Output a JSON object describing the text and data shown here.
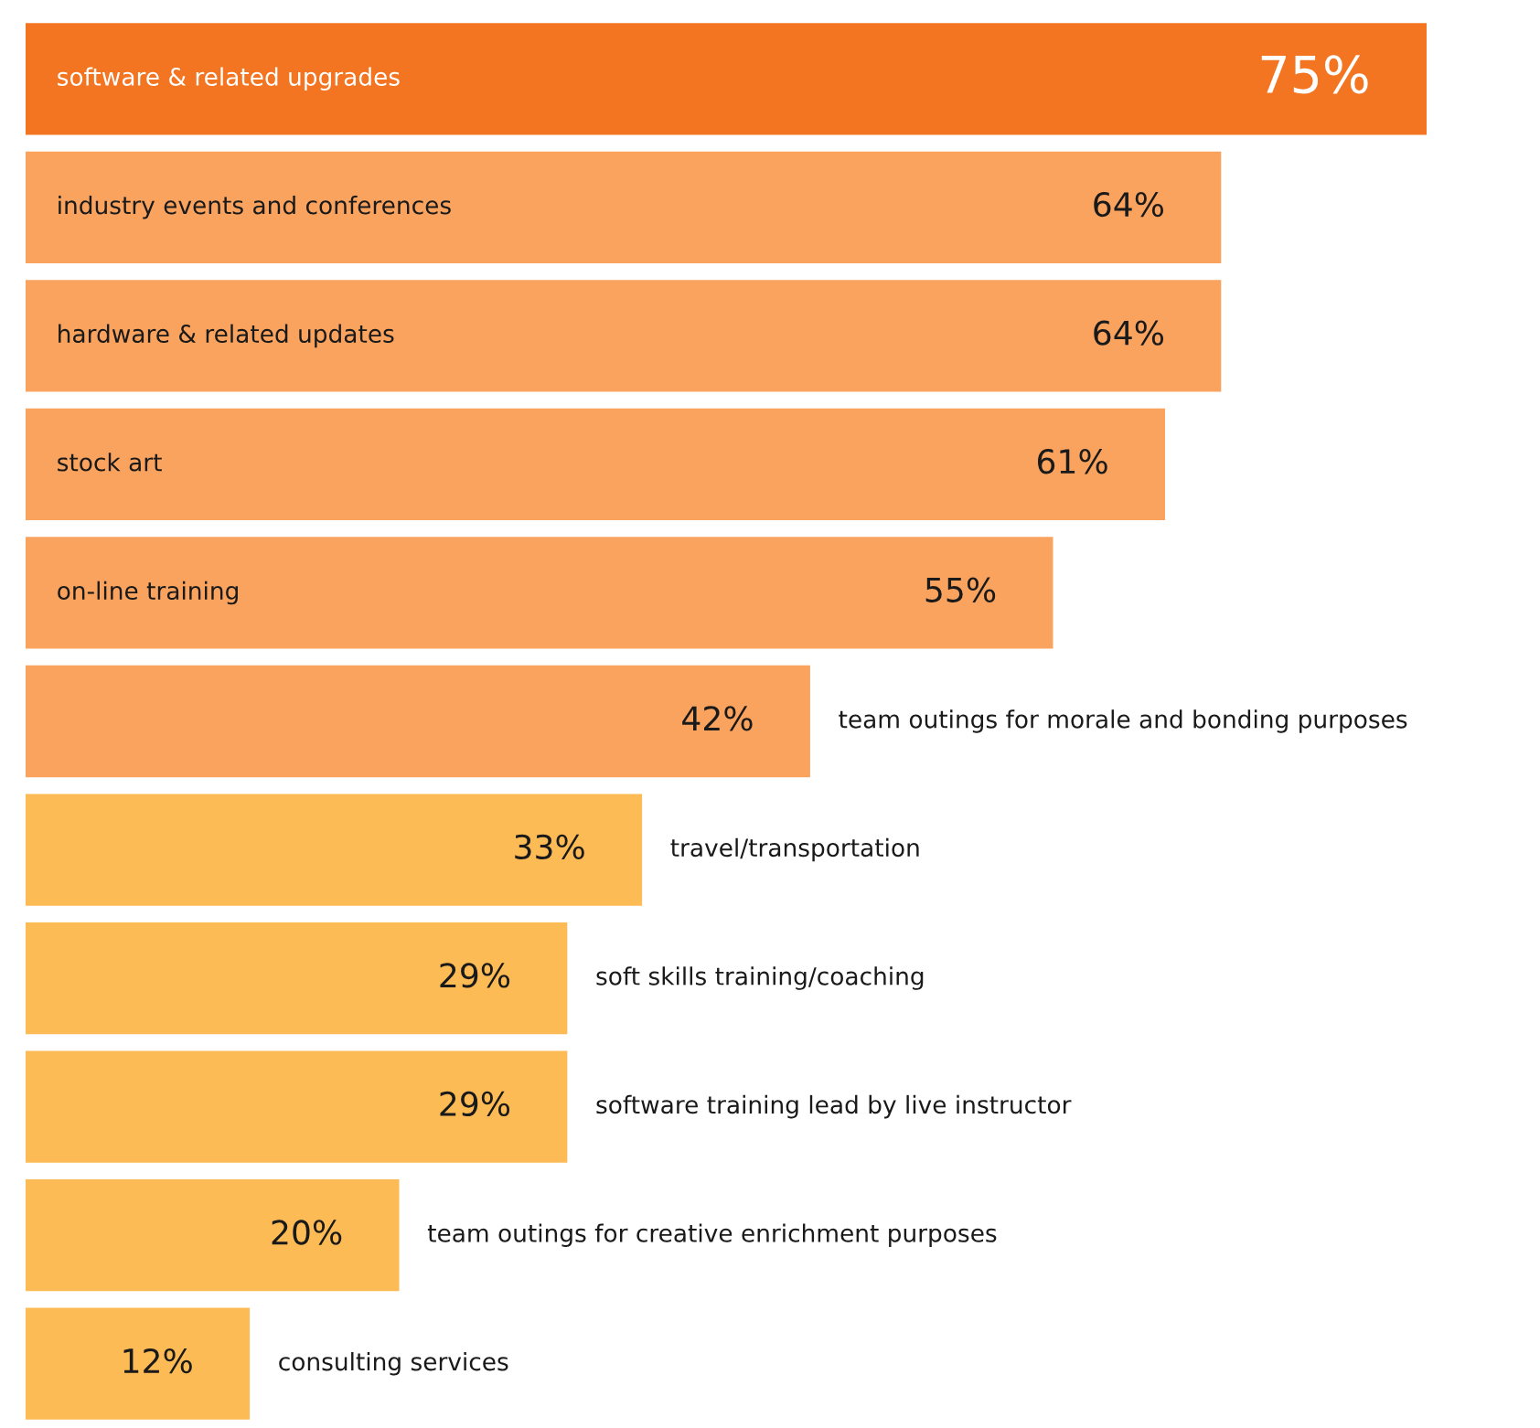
{
  "chart_data": {
    "type": "bar",
    "orientation": "horizontal",
    "categories": [
      "software & related upgrades",
      "industry events and conferences",
      "hardware & related updates",
      "stock art",
      "on-line training",
      "team outings for morale and bonding purposes",
      "travel/transportation",
      "soft skills training/coaching",
      "software training lead by live instructor",
      "team outings for creative enrichment purposes",
      "consulting services"
    ],
    "values": [
      75,
      64,
      64,
      61,
      55,
      42,
      33,
      29,
      29,
      20,
      12
    ],
    "value_labels": [
      "75%",
      "64%",
      "64%",
      "61%",
      "55%",
      "42%",
      "33%",
      "29%",
      "29%",
      "20%",
      "12%"
    ],
    "colors": [
      "#f47521",
      "#f9a35f",
      "#f9a35f",
      "#f9a35f",
      "#f9a35f",
      "#f9a35f",
      "#fdbb55",
      "#fdbb55",
      "#fdbb55",
      "#fdbb55",
      "#fdbb55"
    ],
    "legend": false
  }
}
